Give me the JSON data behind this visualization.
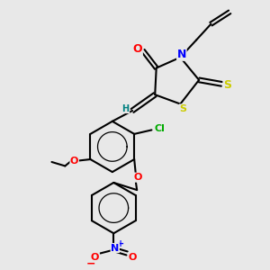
{
  "bg_color": "#e8e8e8",
  "bond_color": "#000000",
  "atom_colors": {
    "O": "#ff0000",
    "N": "#0000ff",
    "S": "#cccc00",
    "Cl": "#00aa00",
    "H": "#008080",
    "C": "#000000"
  },
  "figsize": [
    3.0,
    3.0
  ],
  "dpi": 100,
  "xlim": [
    0,
    10
  ],
  "ylim": [
    0,
    10
  ]
}
